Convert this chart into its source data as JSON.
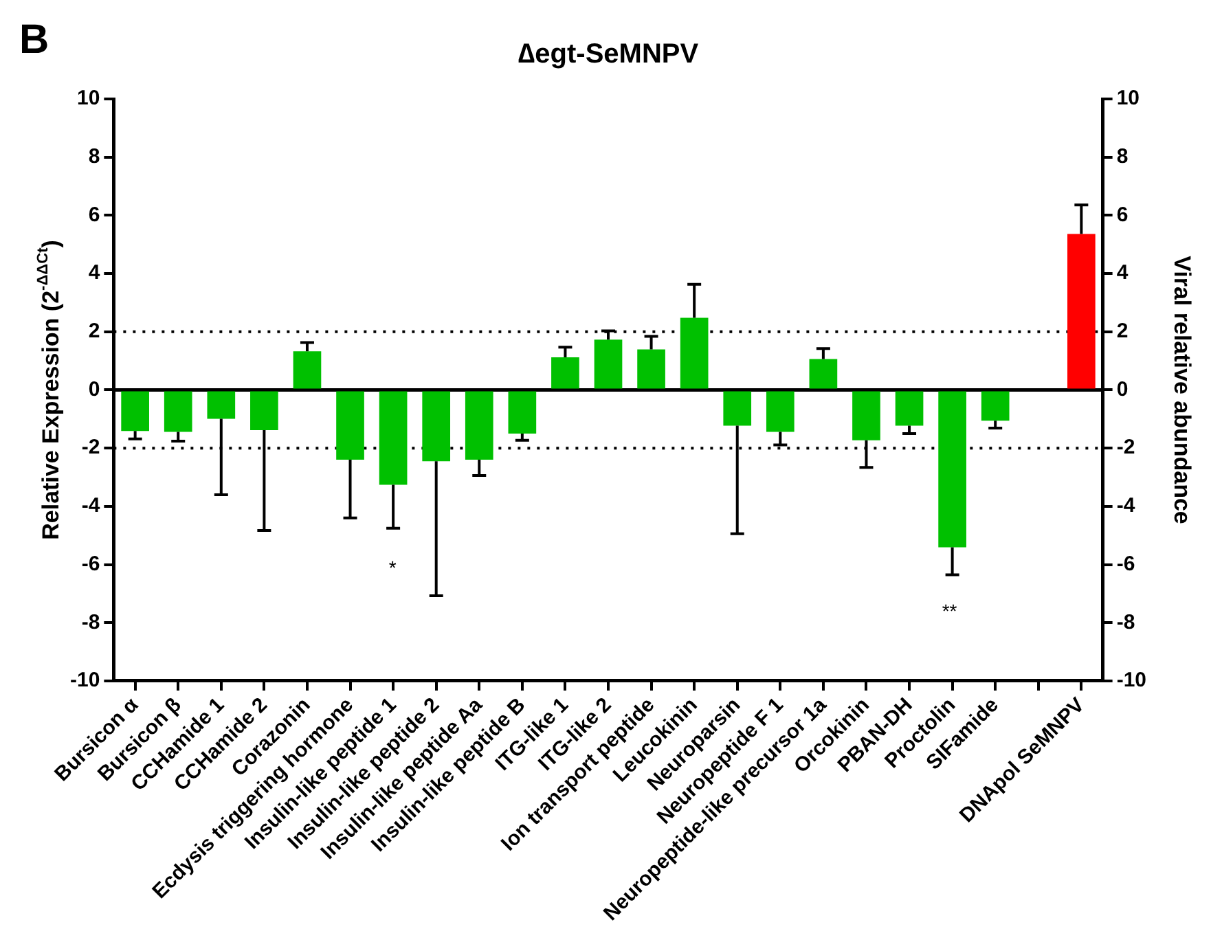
{
  "chart_data": {
    "type": "bar",
    "title": "∆egt-SeMNPV",
    "ylabel": "Relative Expression (2$^{-ΔΔCt}$)",
    "y2label": "Viral relative abundance",
    "categories": [
      "Bursicon α",
      "Bursicon β",
      "CCHamide 1",
      "CCHamide 2",
      "Corazonin",
      "Ecdysis triggering hormone",
      "Insulin-like peptide 1",
      "Insulin-like peptide 2",
      "Insulin-like peptide Aa",
      "Insulin-like peptide B",
      "ITG-like 1",
      "ITG-like 2",
      "Ion transport peptide",
      "Leucokinin",
      "Neuroparsin",
      "Neuropeptide F 1",
      "Neuropeptide-like precursor 1a",
      "Orcokinin",
      "PBAN-DH",
      "Proctolin",
      "SIFamide",
      null,
      "DNApol SeMNPV"
    ],
    "series": [
      {
        "color": "#00c000",
        "values": [
          -1.41,
          -1.44,
          -0.99,
          -1.38,
          1.33,
          -2.4,
          -3.26,
          -2.45,
          -2.4,
          -1.5,
          1.12,
          1.73,
          1.39,
          2.48,
          -1.23,
          -1.44,
          1.06,
          -1.73,
          -1.23,
          -5.41,
          -1.06,
          null,
          null
        ],
        "errors": [
          0.27,
          0.32,
          2.61,
          3.45,
          0.3,
          2.0,
          1.49,
          4.62,
          0.54,
          0.23,
          0.35,
          0.3,
          0.45,
          1.15,
          3.71,
          0.45,
          0.36,
          0.93,
          0.27,
          0.94,
          0.25,
          null,
          null
        ]
      },
      {
        "color": "#ff0000",
        "axis": "y2",
        "values": [
          null,
          null,
          null,
          null,
          null,
          null,
          null,
          null,
          null,
          null,
          null,
          null,
          null,
          null,
          null,
          null,
          null,
          null,
          null,
          null,
          null,
          null,
          5.36
        ],
        "errors": [
          null,
          null,
          null,
          null,
          null,
          null,
          null,
          null,
          null,
          null,
          null,
          null,
          null,
          null,
          null,
          null,
          null,
          null,
          null,
          null,
          null,
          null,
          1.0
        ]
      }
    ],
    "ylim": [
      -10,
      10
    ],
    "yticks": [
      -10,
      -8,
      -6,
      -4,
      -2,
      0,
      2,
      4,
      6,
      8,
      10
    ],
    "y2lim": [
      -10,
      10
    ],
    "y2ticks": [
      -10,
      -8,
      -6,
      -4,
      -2,
      0,
      2,
      4,
      6,
      8,
      10
    ],
    "ref_lines": [
      {
        "axis": "y",
        "value": 2,
        "line_style": "dotted"
      },
      {
        "axis": "y",
        "value": -2,
        "line_style": "dotted"
      },
      {
        "axis": "y",
        "value": 0,
        "line_style": "solid"
      }
    ],
    "annotations": [
      "B",
      "*",
      "**"
    ],
    "grid": false,
    "legend": false
  }
}
